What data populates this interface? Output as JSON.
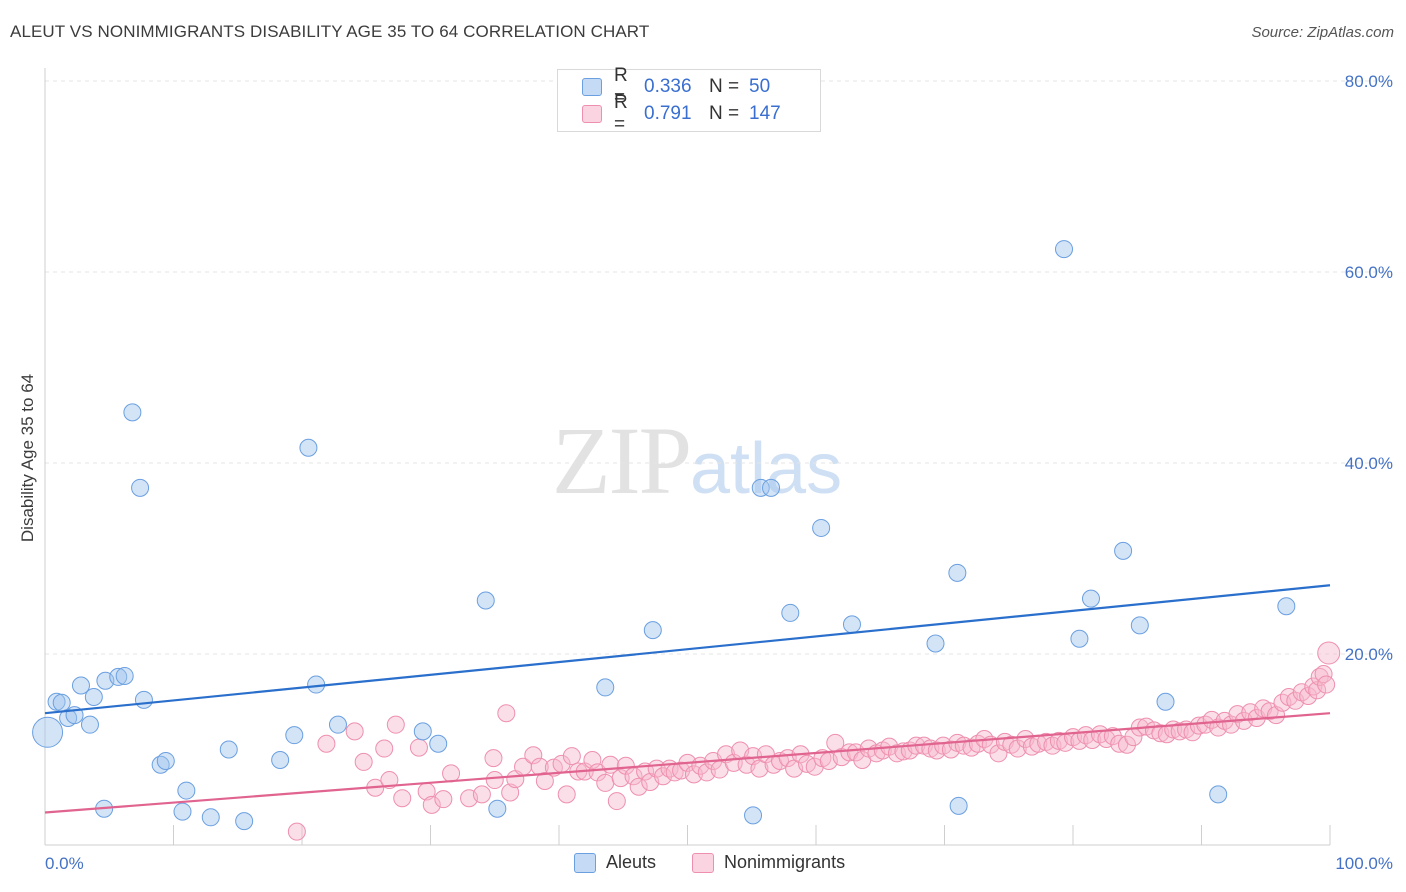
{
  "title": "ALEUT VS NONIMMIGRANTS DISABILITY AGE 35 TO 64 CORRELATION CHART",
  "source": "Source: ZipAtlas.com",
  "watermark": {
    "zip": "ZIP",
    "atlas": "atlas"
  },
  "legend": {
    "rows": [
      {
        "r_label": "R =",
        "r_value": "0.336",
        "n_label": "N =",
        "n_value": "50",
        "color": "#9ec3ee"
      },
      {
        "r_label": "R =",
        "r_value": "0.791",
        "n_label": "N =",
        "n_value": "147",
        "color": "#f7b8cb"
      }
    ]
  },
  "bottom_legend": [
    {
      "label": "Aleuts",
      "color": "#9ec3ee"
    },
    {
      "label": "Nonimmigrants",
      "color": "#f7b8cb"
    }
  ],
  "chart_data": {
    "type": "scatter",
    "title": "ALEUT VS NONIMMIGRANTS DISABILITY AGE 35 TO 64 CORRELATION CHART",
    "xlabel": "",
    "ylabel": "Disability Age 35 to 64",
    "xlim": [
      0,
      100
    ],
    "ylim": [
      0,
      82
    ],
    "x_tick_labels": [
      {
        "value": 0,
        "label": "0.0%"
      },
      {
        "value": 100,
        "label": "100.0%"
      }
    ],
    "y_tick_labels": [
      {
        "value": 20,
        "label": "20.0%"
      },
      {
        "value": 40,
        "label": "40.0%"
      },
      {
        "value": 60,
        "label": "60.0%"
      },
      {
        "value": 80,
        "label": "80.0%"
      }
    ],
    "grid": true,
    "legend_position": "top-center",
    "series": [
      {
        "name": "Aleuts",
        "color": "#9ec3ee",
        "line_color": "#2a6fcc",
        "trend": [
          [
            0,
            13.8
          ],
          [
            100,
            27.2
          ]
        ],
        "points": [
          [
            0.2,
            11.8
          ],
          [
            0.9,
            15.0
          ],
          [
            1.3,
            14.9
          ],
          [
            1.8,
            13.3
          ],
          [
            2.3,
            13.6
          ],
          [
            2.8,
            16.7
          ],
          [
            3.5,
            12.6
          ],
          [
            3.8,
            15.5
          ],
          [
            4.6,
            3.8
          ],
          [
            4.7,
            17.2
          ],
          [
            5.7,
            17.6
          ],
          [
            6.2,
            17.7
          ],
          [
            6.8,
            45.3
          ],
          [
            7.4,
            37.4
          ],
          [
            7.7,
            15.2
          ],
          [
            9.0,
            8.4
          ],
          [
            9.4,
            8.8
          ],
          [
            10.7,
            3.5
          ],
          [
            11.0,
            5.7
          ],
          [
            12.9,
            2.9
          ],
          [
            14.3,
            10.0
          ],
          [
            15.5,
            2.5
          ],
          [
            18.3,
            8.9
          ],
          [
            19.4,
            11.5
          ],
          [
            20.5,
            41.6
          ],
          [
            21.1,
            16.8
          ],
          [
            22.8,
            12.6
          ],
          [
            29.4,
            11.9
          ],
          [
            30.6,
            10.6
          ],
          [
            34.3,
            25.6
          ],
          [
            35.2,
            3.8
          ],
          [
            43.6,
            16.5
          ],
          [
            47.3,
            22.5
          ],
          [
            55.1,
            3.1
          ],
          [
            55.7,
            37.4
          ],
          [
            56.5,
            37.4
          ],
          [
            58.0,
            24.3
          ],
          [
            60.4,
            33.2
          ],
          [
            62.8,
            23.1
          ],
          [
            69.3,
            21.1
          ],
          [
            71.0,
            28.5
          ],
          [
            71.1,
            4.1
          ],
          [
            79.3,
            62.4
          ],
          [
            80.5,
            21.6
          ],
          [
            81.4,
            25.8
          ],
          [
            83.9,
            30.8
          ],
          [
            85.2,
            23.0
          ],
          [
            87.2,
            15.0
          ],
          [
            91.3,
            5.3
          ],
          [
            96.6,
            25.0
          ]
        ]
      },
      {
        "name": "Nonimmigrants",
        "color": "#f7b8cb",
        "line_color": "#e0648f",
        "trend": [
          [
            0,
            3.4
          ],
          [
            100,
            13.8
          ]
        ],
        "points": [
          [
            19.6,
            1.4
          ],
          [
            21.9,
            10.6
          ],
          [
            24.1,
            11.9
          ],
          [
            24.8,
            8.7
          ],
          [
            25.7,
            6.0
          ],
          [
            26.4,
            10.1
          ],
          [
            26.8,
            6.8
          ],
          [
            27.3,
            12.6
          ],
          [
            27.8,
            4.9
          ],
          [
            29.1,
            10.2
          ],
          [
            29.7,
            5.6
          ],
          [
            30.1,
            4.2
          ],
          [
            31.0,
            4.8
          ],
          [
            31.6,
            7.5
          ],
          [
            33.0,
            4.9
          ],
          [
            34.0,
            5.3
          ],
          [
            34.9,
            9.1
          ],
          [
            35.0,
            6.8
          ],
          [
            35.9,
            13.8
          ],
          [
            36.2,
            5.5
          ],
          [
            36.6,
            6.9
          ],
          [
            37.2,
            8.2
          ],
          [
            38.0,
            9.4
          ],
          [
            38.5,
            8.2
          ],
          [
            38.9,
            6.7
          ],
          [
            39.6,
            8.1
          ],
          [
            40.2,
            8.5
          ],
          [
            40.6,
            5.3
          ],
          [
            41.0,
            9.3
          ],
          [
            41.5,
            7.7
          ],
          [
            42.0,
            7.7
          ],
          [
            42.6,
            8.9
          ],
          [
            43.0,
            7.6
          ],
          [
            43.6,
            6.5
          ],
          [
            44.0,
            8.4
          ],
          [
            44.5,
            4.6
          ],
          [
            44.8,
            7.0
          ],
          [
            45.2,
            8.3
          ],
          [
            45.8,
            7.2
          ],
          [
            46.2,
            6.1
          ],
          [
            46.7,
            7.7
          ],
          [
            47.1,
            6.6
          ],
          [
            47.6,
            8.0
          ],
          [
            48.1,
            7.2
          ],
          [
            48.6,
            8.0
          ],
          [
            49.0,
            7.6
          ],
          [
            49.5,
            7.8
          ],
          [
            50.0,
            8.6
          ],
          [
            50.5,
            7.4
          ],
          [
            51.0,
            8.3
          ],
          [
            51.5,
            7.6
          ],
          [
            52.0,
            8.8
          ],
          [
            52.5,
            7.9
          ],
          [
            53.0,
            9.5
          ],
          [
            53.6,
            8.6
          ],
          [
            54.1,
            9.9
          ],
          [
            54.6,
            8.4
          ],
          [
            55.1,
            9.3
          ],
          [
            55.6,
            8.0
          ],
          [
            56.1,
            9.5
          ],
          [
            56.7,
            8.4
          ],
          [
            57.2,
            8.8
          ],
          [
            57.8,
            9.1
          ],
          [
            58.3,
            8.0
          ],
          [
            58.8,
            9.5
          ],
          [
            59.3,
            8.5
          ],
          [
            59.9,
            8.2
          ],
          [
            60.5,
            9.1
          ],
          [
            61.0,
            8.8
          ],
          [
            61.5,
            10.7
          ],
          [
            62.0,
            9.2
          ],
          [
            62.6,
            9.7
          ],
          [
            63.1,
            9.7
          ],
          [
            63.6,
            8.9
          ],
          [
            64.1,
            10.1
          ],
          [
            64.7,
            9.6
          ],
          [
            65.2,
            9.9
          ],
          [
            65.7,
            10.3
          ],
          [
            66.3,
            9.6
          ],
          [
            66.8,
            9.8
          ],
          [
            67.3,
            9.9
          ],
          [
            67.8,
            10.4
          ],
          [
            68.4,
            10.4
          ],
          [
            68.9,
            10.1
          ],
          [
            69.4,
            9.9
          ],
          [
            69.9,
            10.4
          ],
          [
            70.5,
            10.0
          ],
          [
            71.0,
            10.7
          ],
          [
            71.5,
            10.4
          ],
          [
            72.1,
            10.2
          ],
          [
            72.6,
            10.6
          ],
          [
            73.1,
            11.1
          ],
          [
            73.6,
            10.5
          ],
          [
            74.2,
            9.6
          ],
          [
            74.7,
            10.8
          ],
          [
            75.2,
            10.5
          ],
          [
            75.7,
            10.1
          ],
          [
            76.3,
            11.1
          ],
          [
            76.8,
            10.3
          ],
          [
            77.3,
            10.6
          ],
          [
            77.9,
            10.8
          ],
          [
            78.4,
            10.4
          ],
          [
            78.9,
            10.9
          ],
          [
            79.4,
            10.7
          ],
          [
            80.0,
            11.3
          ],
          [
            80.5,
            10.9
          ],
          [
            81.0,
            11.5
          ],
          [
            81.5,
            11.0
          ],
          [
            82.1,
            11.6
          ],
          [
            82.6,
            11.1
          ],
          [
            83.1,
            11.4
          ],
          [
            83.6,
            10.6
          ],
          [
            84.2,
            10.5
          ],
          [
            84.7,
            11.3
          ],
          [
            85.2,
            12.3
          ],
          [
            85.7,
            12.4
          ],
          [
            86.3,
            12.0
          ],
          [
            86.8,
            11.7
          ],
          [
            87.3,
            11.6
          ],
          [
            87.8,
            12.1
          ],
          [
            88.3,
            11.9
          ],
          [
            88.8,
            12.1
          ],
          [
            89.3,
            11.8
          ],
          [
            89.8,
            12.5
          ],
          [
            90.3,
            12.6
          ],
          [
            90.8,
            13.1
          ],
          [
            91.3,
            12.3
          ],
          [
            91.8,
            13.0
          ],
          [
            92.3,
            12.6
          ],
          [
            92.8,
            13.7
          ],
          [
            93.3,
            13.0
          ],
          [
            93.8,
            13.9
          ],
          [
            94.3,
            13.3
          ],
          [
            94.8,
            14.3
          ],
          [
            95.3,
            14.0
          ],
          [
            95.8,
            13.6
          ],
          [
            96.3,
            14.9
          ],
          [
            96.8,
            15.5
          ],
          [
            97.3,
            15.1
          ],
          [
            97.8,
            16.0
          ],
          [
            98.3,
            15.6
          ],
          [
            98.7,
            16.6
          ],
          [
            99.0,
            16.2
          ],
          [
            99.2,
            17.6
          ],
          [
            99.5,
            17.9
          ],
          [
            99.7,
            16.8
          ],
          [
            99.9,
            20.1
          ]
        ]
      }
    ]
  }
}
